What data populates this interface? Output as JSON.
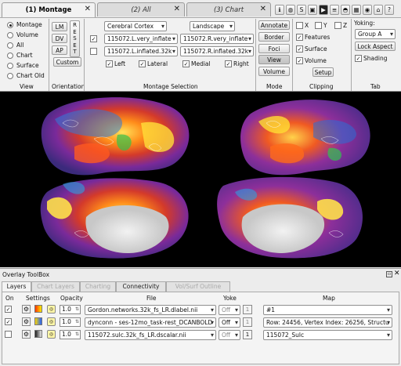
{
  "tabs": [
    {
      "label": "(1) Montage"
    },
    {
      "label": "(2) All"
    },
    {
      "label": "(3) Chart"
    }
  ],
  "toolbar_icons": [
    "info-icon",
    "identify-icon",
    "scene-icon",
    "camera-icon",
    "movie-icon",
    "surface-properties-icon",
    "volume-properties-icon",
    "layers-icon",
    "help-icon"
  ],
  "view": {
    "title": "View",
    "options": [
      "Montage",
      "Volume",
      "All",
      "Chart",
      "Surface",
      "Chart Old"
    ],
    "selected": "Montage"
  },
  "orientation": {
    "title": "Orientation",
    "lm": "LM",
    "dv": "DV",
    "ap": "AP",
    "reset": [
      "R",
      "E",
      "S",
      "E",
      "T"
    ],
    "custom": "Custom"
  },
  "montage": {
    "title": "Montage Selection",
    "structure": "Cerebral Cortex",
    "layout": "Landscape",
    "row1_left": "115072.L.very_inflate",
    "row1_right": "115072.R.very_inflate",
    "row2_left": "115072.L.inflated.32k",
    "row2_right": "115072.R.inflated.32k",
    "left_label": "Left",
    "lateral_label": "Lateral",
    "medial_label": "Medial",
    "right_label": "Right"
  },
  "mode": {
    "title": "Mode",
    "annotate": "Annotate",
    "border": "Border",
    "foci": "Foci",
    "view": "View",
    "volume": "Volume"
  },
  "clipping": {
    "title": "Clipping",
    "x": "X",
    "y": "Y",
    "z": "Z",
    "features": "Features",
    "surface": "Surface",
    "volume": "Volume",
    "setup": "Setup"
  },
  "tab": {
    "title": "Tab",
    "yoking_label": "Yoking:",
    "group": "Group A",
    "lock_aspect": "Lock Aspect",
    "shading": "Shading"
  },
  "overlay": {
    "title": "Overlay ToolBox",
    "tabs": [
      "Layers",
      "Chart Layers",
      "Charting",
      "Connectivity",
      "Vol/Surf Outline"
    ],
    "headers": {
      "on": "On",
      "settings": "Settings",
      "opacity": "Opacity",
      "file": "File",
      "yoke": "Yoke",
      "map": "Map"
    },
    "rows": [
      {
        "on": true,
        "opacity": "1.0",
        "file": "Gordon.networks.32k_fs_LR.dlabel.nii",
        "yoke": "Off",
        "map": "#1",
        "colors": [
          "#ff3300",
          "#ffee00"
        ]
      },
      {
        "on": true,
        "opacity": "1.0",
        "file": "dynconn - ses-12mo_task-rest_DCANBOLD",
        "yoke": "Off",
        "map": "Row: 24456, Vertex Index: 26256, Structu",
        "colors": [
          "#ffd800",
          "#2060ff"
        ]
      },
      {
        "on": false,
        "opacity": "1.0",
        "file": "115072.sulc.32k_fs_LR.dscalar.nii",
        "yoke": "Off",
        "map": "115072_Sulc",
        "colors": [
          "#1e1e1e",
          "#e8e8e8"
        ]
      }
    ]
  }
}
